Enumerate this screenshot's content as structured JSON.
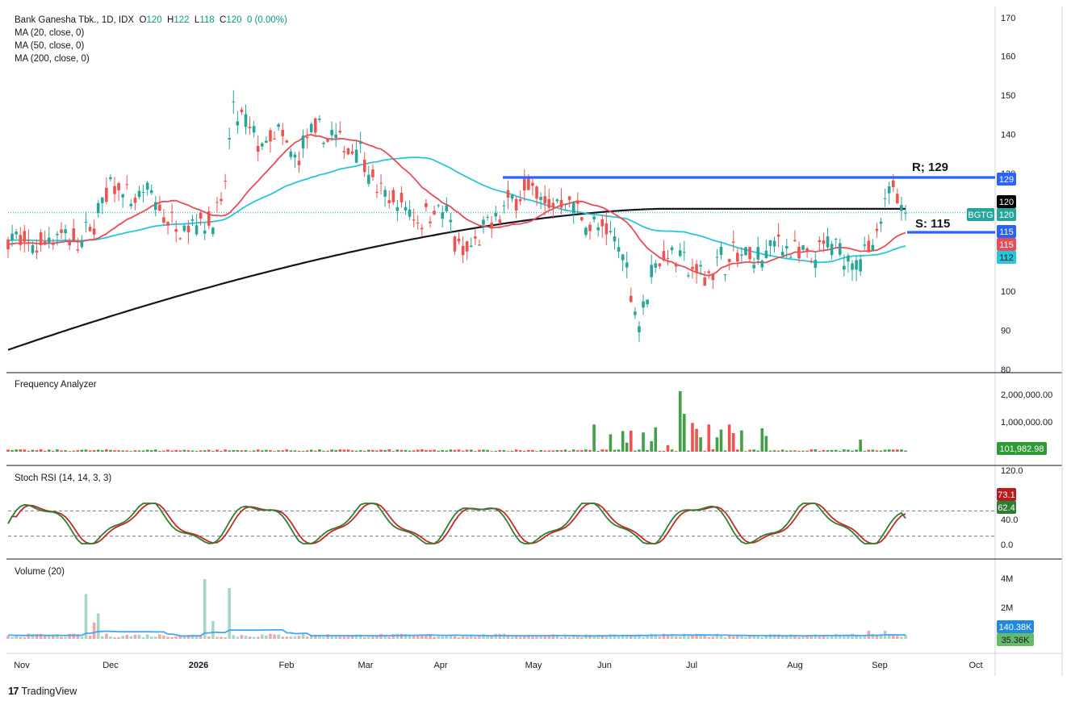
{
  "header": {
    "symbol_line": "Bank Ganesha Tbk., 1D, IDX",
    "ohlc_open_label": "O",
    "ohlc_open": "120",
    "ohlc_high_label": "H",
    "ohlc_high": "122",
    "ohlc_low_label": "L",
    "ohlc_low": "118",
    "ohlc_close_label": "C",
    "ohlc_close": "120",
    "change": "0 (0.00%)",
    "ma_lines": [
      "MA (20, close, 0)",
      "MA (50, close, 0)",
      "MA (200, close, 0)"
    ]
  },
  "colors": {
    "up": "#26a69a",
    "down": "#ef5350",
    "ma20": "#e84c56",
    "ma50": "#26c6da",
    "ma200": "#131722",
    "level": "#2962ff",
    "stoch_k": "#2e7d32",
    "stoch_d": "#c62828",
    "vol_ma": "#42a5f5",
    "freq": "#43a047"
  },
  "chart_data": [
    {
      "type": "candlestick",
      "title": "Bank Ganesha Tbk., 1D, IDX",
      "x_ticks": [
        "Nov",
        "Dec",
        "2026",
        "Feb",
        "Mar",
        "Apr",
        "May",
        "Jun",
        "Jul",
        "Aug",
        "Sep",
        "Oct"
      ],
      "y_ticks": [
        80,
        90,
        100,
        110,
        120,
        130,
        140,
        150,
        160,
        170
      ],
      "ylim": [
        80,
        170
      ],
      "last": {
        "open": 120,
        "high": 122,
        "low": 118,
        "close": 120
      },
      "price_labels": {
        "symbol": "BGTG",
        "close": "120",
        "last_box": "120",
        "resistance": "129",
        "support": "115",
        "ma20": "115",
        "ma50": "112"
      },
      "annotations": [
        {
          "text": "R; 129",
          "value": 129
        },
        {
          "text": "S: 115",
          "value": 115
        }
      ],
      "series": [
        {
          "name": "MA (20, close, 0)",
          "type": "line"
        },
        {
          "name": "MA (50, close, 0)",
          "type": "line"
        },
        {
          "name": "MA (200, close, 0)",
          "type": "line"
        }
      ]
    },
    {
      "type": "bar",
      "title": "Frequency Analyzer",
      "y_ticks": [
        "2,000,000.00",
        "1,000,000.00"
      ],
      "last_value": "101,982.98"
    },
    {
      "type": "line",
      "title": "Stoch RSI (14, 14, 3, 3)",
      "y_ticks": [
        "120.0",
        "40.0",
        "0.0"
      ],
      "ylim": [
        -10,
        125
      ],
      "bands": [
        20,
        80
      ],
      "last_k": "62.4",
      "last_d": "73.1"
    },
    {
      "type": "bar",
      "title": "Volume (20)",
      "y_ticks": [
        "4M",
        "2M"
      ],
      "last_ma": "140.38K",
      "last_volume": "35.36K"
    }
  ],
  "footer": {
    "logo_mark": "17",
    "brand": "TradingView"
  }
}
